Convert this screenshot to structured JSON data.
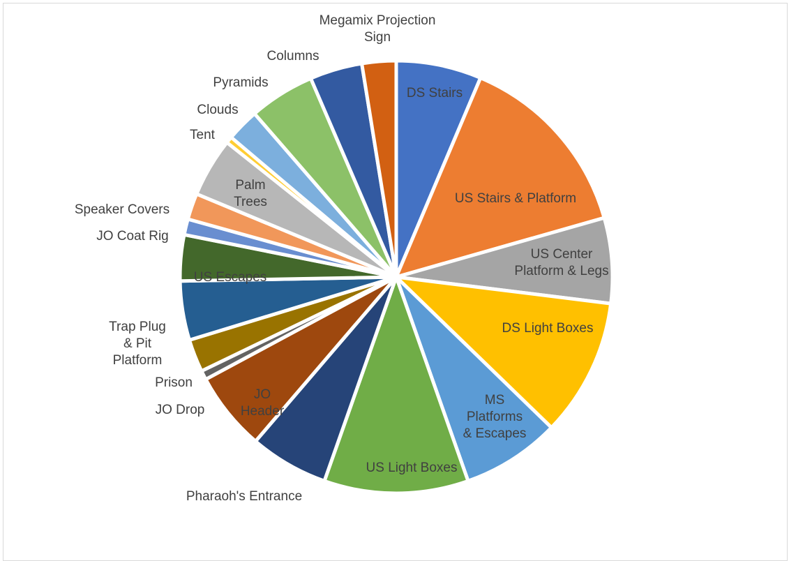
{
  "chart_data": {
    "type": "pie",
    "slices": [
      {
        "label": "DS Stairs",
        "value": 6.5,
        "color": "#4472c4",
        "label_color": "#404040",
        "inside": true
      },
      {
        "label": "US Stairs & Platform",
        "value": 14.5,
        "color": "#ed7d31",
        "label_color": "#404040",
        "inside": true
      },
      {
        "label": "US Center Platform & Legs",
        "value": 6.5,
        "color": "#a5a5a5",
        "label_color": "#404040",
        "inside": true
      },
      {
        "label": "DS Light Boxes",
        "value": 10.5,
        "color": "#ffc000",
        "label_color": "#404040",
        "inside": true
      },
      {
        "label": "MS Platforms & Escapes",
        "value": 7.5,
        "color": "#5b9bd5",
        "label_color": "#404040",
        "inside": true
      },
      {
        "label": "US Light Boxes",
        "value": 11.0,
        "color": "#70ad47",
        "label_color": "#404040",
        "inside": true
      },
      {
        "label": "Pharaoh's Entrance",
        "value": 6.0,
        "color": "#264478",
        "label_color": "#404040",
        "inside": false
      },
      {
        "label": "JO Header",
        "value": 6.0,
        "color": "#9e480e",
        "label_color": "#404040",
        "inside": true
      },
      {
        "label": "JO Drop",
        "value": 0.7,
        "color": "#636363",
        "label_color": "#404040",
        "inside": false
      },
      {
        "label": "Prison",
        "value": 2.5,
        "color": "#997300",
        "label_color": "#404040",
        "inside": false
      },
      {
        "label": "Trap Plug & Pit Platform",
        "value": 4.5,
        "color": "#255e91",
        "label_color": "#404040",
        "inside": false
      },
      {
        "label": "US Escapes",
        "value": 3.5,
        "color": "#43682b",
        "label_color": "#404040",
        "inside": true
      },
      {
        "label": "JO Coat Rig",
        "value": 1.2,
        "color": "#698ed0",
        "label_color": "#404040",
        "inside": false
      },
      {
        "label": "Speaker Covers",
        "value": 2.0,
        "color": "#f1975a",
        "label_color": "#404040",
        "inside": false
      },
      {
        "label": "Palm Trees",
        "value": 4.5,
        "color": "#b7b7b7",
        "label_color": "#404040",
        "inside": true
      },
      {
        "label": "Tent",
        "value": 0.5,
        "color": "#ffcd33",
        "label_color": "#404040",
        "inside": false
      },
      {
        "label": "Clouds",
        "value": 2.5,
        "color": "#7cafdd",
        "label_color": "#404040",
        "inside": false
      },
      {
        "label": "Pyramids",
        "value": 5.0,
        "color": "#8cc168",
        "label_color": "#404040",
        "inside": false
      },
      {
        "label": "Columns",
        "value": 4.0,
        "color": "#335aa1",
        "label_color": "#404040",
        "inside": false
      },
      {
        "label": "Megamix Projection Sign",
        "value": 2.6,
        "color": "#d26012",
        "label_color": "#404040",
        "inside": false
      }
    ]
  }
}
